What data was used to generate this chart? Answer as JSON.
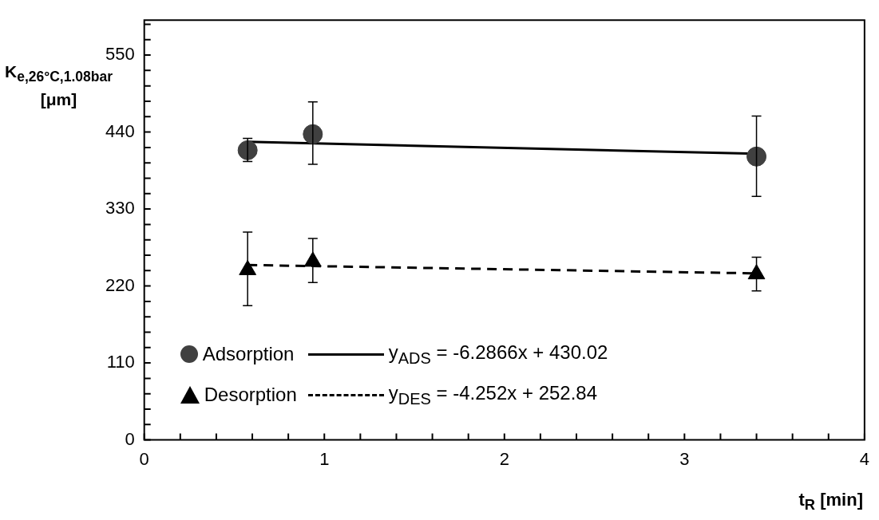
{
  "chart_data": {
    "type": "scatter",
    "xlabel": "t$_{R}$ [min]",
    "ylabel": "K$_{e,26°C,1.08bar}$ [μm]",
    "xlim": [
      0,
      4
    ],
    "xticks": [
      0,
      {
        "value": 0.2,
        "label": null
      },
      {
        "value": 0.4,
        "label": null
      },
      {
        "value": 0.6,
        "label": null
      },
      {
        "value": 0.8,
        "label": null
      },
      1,
      {
        "value": 1.2,
        "label": null
      },
      {
        "value": 1.4,
        "label": null
      },
      {
        "value": 1.6,
        "label": null
      },
      {
        "value": 1.8,
        "label": null
      },
      2,
      {
        "value": 2.2,
        "label": null
      },
      {
        "value": 2.4,
        "label": null
      },
      {
        "value": 2.6,
        "label": null
      },
      {
        "value": 2.8,
        "label": null
      },
      3,
      {
        "value": 3.2,
        "label": null
      },
      {
        "value": 3.4,
        "label": null
      },
      {
        "value": 3.6,
        "label": null
      },
      {
        "value": 3.8,
        "label": null
      },
      4
    ],
    "ylim": [
      0,
      600
    ],
    "yticks": [
      0,
      {
        "value": 22,
        "label": null
      },
      {
        "value": 44,
        "label": null
      },
      {
        "value": 66,
        "label": null
      },
      {
        "value": 88,
        "label": null
      },
      110,
      {
        "value": 132,
        "label": null
      },
      {
        "value": 154,
        "label": null
      },
      {
        "value": 176,
        "label": null
      },
      {
        "value": 198,
        "label": null
      },
      220,
      {
        "value": 242,
        "label": null
      },
      {
        "value": 264,
        "label": null
      },
      {
        "value": 286,
        "label": null
      },
      {
        "value": 308,
        "label": null
      },
      330,
      {
        "value": 352,
        "label": null
      },
      {
        "value": 374,
        "label": null
      },
      {
        "value": 396,
        "label": null
      },
      {
        "value": 418,
        "label": null
      },
      440,
      {
        "value": 462,
        "label": null
      },
      {
        "value": 484,
        "label": null
      },
      {
        "value": 506,
        "label": null
      },
      {
        "value": 528,
        "label": null
      },
      550,
      {
        "value": 572,
        "label": null
      },
      {
        "value": 594,
        "label": null
      }
    ],
    "grid": false,
    "legend": "bottom left",
    "series": [
      {
        "name": "Adsorption",
        "marker": "circle",
        "color": "#404040",
        "x": [
          0.574,
          0.936,
          3.4
        ],
        "values": [
          414,
          437,
          405
        ],
        "errors": [
          [
            398,
            431
          ],
          [
            394,
            483
          ],
          [
            348,
            463
          ]
        ]
      },
      {
        "name": "Desorption",
        "marker": "triangle",
        "color": "#000000",
        "x": [
          0.574,
          0.936,
          3.4
        ],
        "values": [
          243,
          255,
          237
        ],
        "errors": [
          [
            192,
            297
          ],
          [
            225,
            288
          ],
          [
            213,
            261
          ]
        ]
      },
      {
        "name": "y$_{ADS}$ = -6.2866x + 430.02",
        "type": "line",
        "marker": "none",
        "line_style": "solid",
        "color": "#000000",
        "x": [
          0.574,
          3.4
        ],
        "values": [
          426,
          409
        ]
      },
      {
        "name": "y$_{DES}$ = -4.252x + 252.84",
        "type": "line",
        "marker": "none",
        "line_style": "dashed",
        "color": "#000000",
        "x": [
          0.574,
          3.4
        ],
        "values": [
          250,
          238
        ]
      }
    ]
  }
}
